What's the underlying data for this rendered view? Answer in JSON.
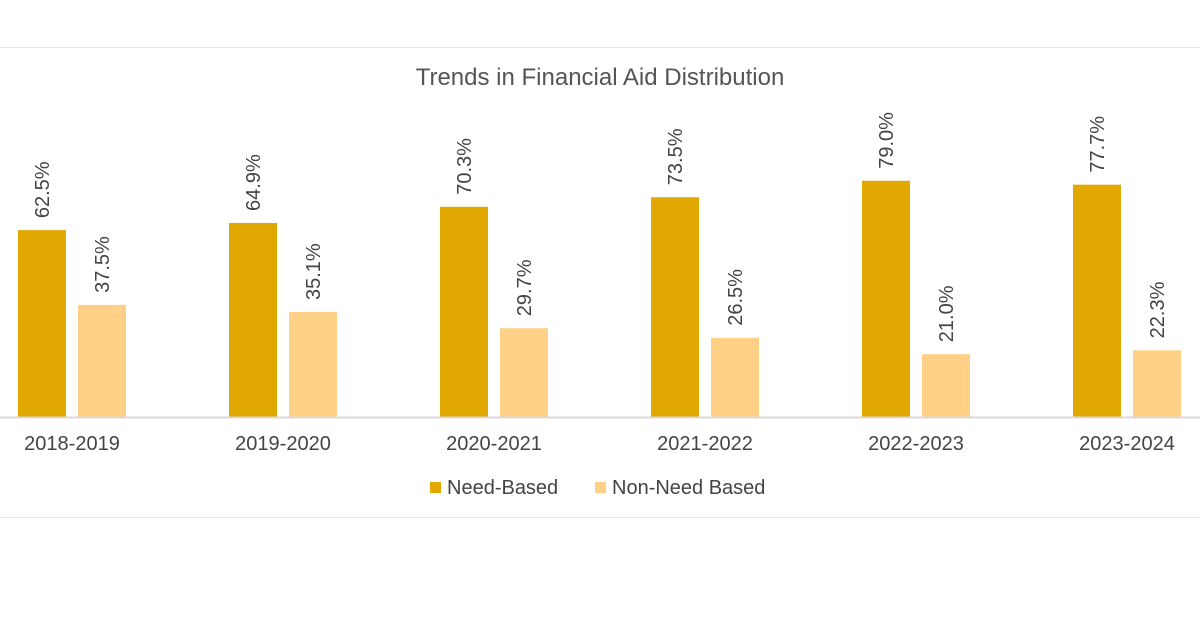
{
  "chart_data": {
    "type": "bar",
    "title": "Trends in Financial Aid Distribution",
    "xlabel": "",
    "ylabel": "",
    "ylim": [
      0,
      100
    ],
    "grid": false,
    "legend_position": "bottom",
    "categories": [
      "2018-2019",
      "2019-2020",
      "2020-2021",
      "2021-2022",
      "2022-2023",
      "2023-2024"
    ],
    "series": [
      {
        "name": "Need-Based",
        "color": "#e0a800",
        "values": [
          62.5,
          64.9,
          70.3,
          73.5,
          79.0,
          77.7
        ],
        "labels": [
          "62.5%",
          "64.9%",
          "70.3%",
          "73.5%",
          "79.0%",
          "77.7%"
        ]
      },
      {
        "name": "Non-Need Based",
        "color": "#ffd085",
        "values": [
          37.5,
          35.1,
          29.7,
          26.5,
          21.0,
          22.3
        ],
        "labels": [
          "37.5%",
          "35.1%",
          "29.7%",
          "26.5%",
          "21.0%",
          "22.3%"
        ]
      }
    ]
  }
}
